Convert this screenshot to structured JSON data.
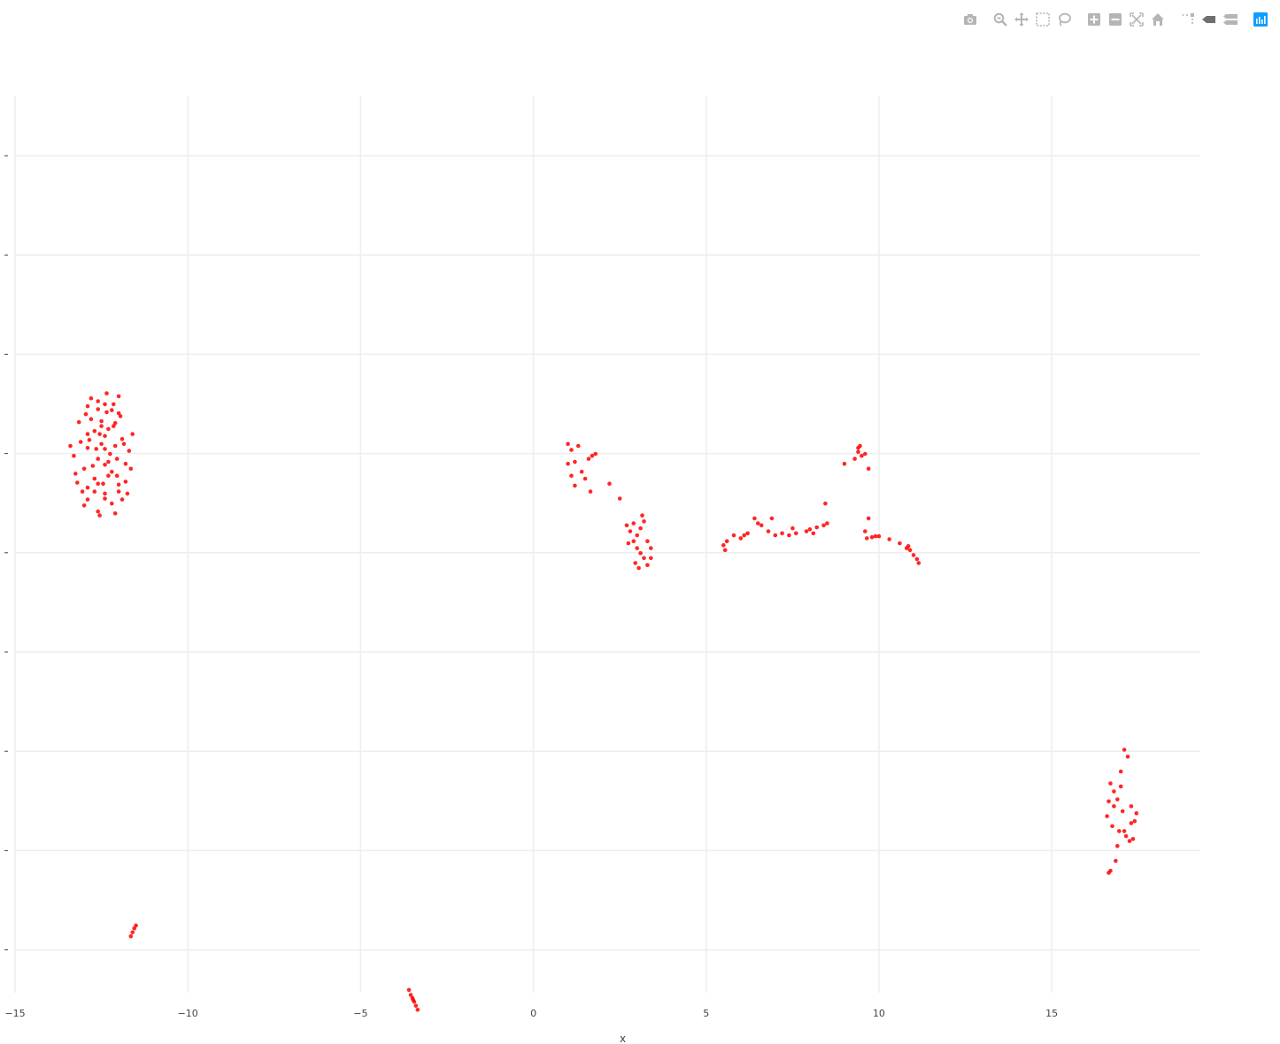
{
  "toolbar": {
    "buttons": [
      {
        "name": "camera-icon",
        "title": "Download plot as a png"
      },
      {
        "name": "zoom-icon",
        "title": "Zoom"
      },
      {
        "name": "pan-icon",
        "title": "Pan"
      },
      {
        "name": "box-select-icon",
        "title": "Box Select"
      },
      {
        "name": "lasso-select-icon",
        "title": "Lasso Select"
      },
      {
        "name": "zoom-in-icon",
        "title": "Zoom in"
      },
      {
        "name": "zoom-out-icon",
        "title": "Zoom out"
      },
      {
        "name": "autoscale-icon",
        "title": "Autoscale"
      },
      {
        "name": "reset-axes-icon",
        "title": "Reset axes"
      },
      {
        "name": "spike-lines-icon",
        "title": "Toggle Spike Lines"
      },
      {
        "name": "hover-closest-icon",
        "title": "Show closest data on hover"
      },
      {
        "name": "hover-compare-icon",
        "title": "Compare data on hover"
      },
      {
        "name": "plotly-logo-icon",
        "title": "Produced with Plotly"
      }
    ]
  },
  "chart_data": {
    "type": "scatter",
    "title": "",
    "xlabel": "x",
    "ylabel": "",
    "xlim": [
      -15,
      19.3
    ],
    "x_ticks": [
      -15,
      -10,
      -5,
      0,
      5,
      10,
      15
    ],
    "x_tick_labels": [
      "−15",
      "−10",
      "−5",
      "0",
      "5",
      "10",
      "15"
    ],
    "y_gridlines": 9,
    "grid": true,
    "legend": "none",
    "marker_color": "#ff0000",
    "series": [
      {
        "points": [
          [
            -12.8,
            0.56
          ],
          [
            -12.6,
            0.53
          ],
          [
            -12.4,
            0.5
          ],
          [
            -12.2,
            0.44
          ],
          [
            -12.0,
            0.41
          ],
          [
            -12.9,
            0.2
          ],
          [
            -12.7,
            0.23
          ],
          [
            -12.5,
            0.28
          ],
          [
            -12.3,
            0.25
          ],
          [
            -12.1,
            0.31
          ],
          [
            -13.1,
            0.12
          ],
          [
            -12.9,
            0.06
          ],
          [
            -12.6,
            -0.05
          ],
          [
            -12.4,
            -0.11
          ],
          [
            -12.1,
            0.08
          ],
          [
            -11.9,
            0.15
          ],
          [
            -13.2,
            -0.29
          ],
          [
            -12.9,
            -0.34
          ],
          [
            -12.7,
            -0.25
          ],
          [
            -12.4,
            -0.4
          ],
          [
            -12.2,
            -0.18
          ],
          [
            -12.0,
            -0.31
          ],
          [
            -11.8,
            -0.1
          ],
          [
            -13.0,
            -0.52
          ],
          [
            -12.6,
            -0.58
          ],
          [
            -12.4,
            -0.45
          ],
          [
            -12.1,
            -0.6
          ],
          [
            -11.9,
            -0.46
          ],
          [
            -13.3,
            -0.02
          ],
          [
            -11.7,
            0.03
          ],
          [
            -12.8,
            0.35
          ],
          [
            -12.5,
            0.1
          ],
          [
            -12.3,
            -0.22
          ],
          [
            -12.6,
            0.45
          ],
          [
            -12.0,
            0.58
          ],
          [
            -12.2,
            -0.5
          ],
          [
            -13.0,
            -0.15
          ],
          [
            -11.8,
            -0.28
          ],
          [
            -12.4,
            0.18
          ],
          [
            -12.7,
            -0.38
          ],
          [
            -13.4,
            0.08
          ],
          [
            -11.6,
            0.2
          ],
          [
            -12.95,
            0.4
          ],
          [
            -12.05,
            -0.05
          ],
          [
            -12.55,
            -0.62
          ],
          [
            -12.35,
            0.61
          ],
          [
            -12.9,
            -0.46
          ],
          [
            -12.15,
            0.28
          ],
          [
            -11.75,
            -0.4
          ],
          [
            -13.15,
            0.32
          ],
          [
            -12.45,
            -0.3
          ],
          [
            -12.65,
            0.05
          ],
          [
            -12.25,
            0.0
          ],
          [
            -11.95,
            0.38
          ],
          [
            -13.05,
            -0.38
          ],
          [
            -12.85,
            0.14
          ],
          [
            -12.5,
            0.33
          ],
          [
            -12.3,
            -0.08
          ],
          [
            -12.05,
            -0.22
          ],
          [
            -11.85,
            0.1
          ],
          [
            -12.75,
            -0.12
          ],
          [
            -12.15,
            0.5
          ],
          [
            -13.25,
            -0.2
          ],
          [
            -12.55,
            0.2
          ],
          [
            -12.35,
            0.42
          ],
          [
            -12.0,
            -0.38
          ],
          [
            -11.65,
            -0.15
          ],
          [
            -12.9,
            0.48
          ],
          [
            -12.6,
            -0.3
          ],
          [
            -12.4,
            0.05
          ],
          [
            1.0,
            0.1
          ],
          [
            1.1,
            0.04
          ],
          [
            1.2,
            -0.08
          ],
          [
            1.3,
            0.08
          ],
          [
            1.1,
            -0.22
          ],
          [
            1.4,
            -0.18
          ],
          [
            1.6,
            -0.05
          ],
          [
            1.7,
            -0.02
          ],
          [
            1.5,
            -0.25
          ],
          [
            1.8,
            0.0
          ],
          [
            1.0,
            -0.1
          ],
          [
            1.2,
            -0.32
          ],
          [
            1.65,
            -0.38
          ],
          [
            2.2,
            -0.3
          ],
          [
            2.5,
            -0.45
          ],
          [
            2.7,
            -0.72
          ],
          [
            2.8,
            -0.78
          ],
          [
            2.9,
            -0.7
          ],
          [
            3.0,
            -0.82
          ],
          [
            3.1,
            -0.75
          ],
          [
            3.2,
            -0.68
          ],
          [
            3.3,
            -0.88
          ],
          [
            3.4,
            -0.95
          ],
          [
            3.0,
            -0.95
          ],
          [
            2.9,
            -0.88
          ],
          [
            3.1,
            -1.0
          ],
          [
            3.2,
            -1.05
          ],
          [
            3.4,
            -1.05
          ],
          [
            2.75,
            -0.9
          ],
          [
            3.05,
            -1.15
          ],
          [
            3.15,
            -0.62
          ],
          [
            2.95,
            -1.1
          ],
          [
            3.3,
            -1.12
          ],
          [
            5.5,
            -0.92
          ],
          [
            5.6,
            -0.88
          ],
          [
            5.8,
            -0.82
          ],
          [
            6.0,
            -0.85
          ],
          [
            6.2,
            -0.8
          ],
          [
            6.4,
            -0.65
          ],
          [
            6.6,
            -0.72
          ],
          [
            6.8,
            -0.78
          ],
          [
            7.0,
            -0.82
          ],
          [
            7.2,
            -0.8
          ],
          [
            7.5,
            -0.75
          ],
          [
            7.6,
            -0.8
          ],
          [
            8.0,
            -0.76
          ],
          [
            8.2,
            -0.74
          ],
          [
            8.4,
            -0.72
          ],
          [
            8.5,
            -0.7
          ],
          [
            8.45,
            -0.5
          ],
          [
            5.55,
            -0.97
          ],
          [
            6.1,
            -0.82
          ],
          [
            6.5,
            -0.7
          ],
          [
            6.9,
            -0.65
          ],
          [
            7.4,
            -0.82
          ],
          [
            7.9,
            -0.78
          ],
          [
            8.1,
            -0.8
          ],
          [
            9.0,
            -0.1
          ],
          [
            9.3,
            -0.05
          ],
          [
            9.4,
            0.02
          ],
          [
            9.45,
            0.08
          ],
          [
            9.5,
            -0.02
          ],
          [
            9.6,
            0.0
          ],
          [
            9.4,
            0.06
          ],
          [
            9.7,
            -0.15
          ],
          [
            9.7,
            -0.65
          ],
          [
            9.6,
            -0.78
          ],
          [
            9.8,
            -0.84
          ],
          [
            10.0,
            -0.83
          ],
          [
            10.3,
            -0.86
          ],
          [
            10.6,
            -0.9
          ],
          [
            10.8,
            -0.95
          ],
          [
            10.9,
            -0.97
          ],
          [
            11.0,
            -1.02
          ],
          [
            11.1,
            -1.06
          ],
          [
            11.15,
            -1.1
          ],
          [
            9.65,
            -0.85
          ],
          [
            9.9,
            -0.83
          ],
          [
            10.85,
            -0.93
          ],
          [
            16.7,
            -3.32
          ],
          [
            16.8,
            -3.4
          ],
          [
            16.9,
            -3.48
          ],
          [
            17.0,
            -3.2
          ],
          [
            17.1,
            -2.98
          ],
          [
            17.2,
            -3.05
          ],
          [
            17.3,
            -3.55
          ],
          [
            17.4,
            -3.7
          ],
          [
            16.6,
            -3.65
          ],
          [
            16.75,
            -3.75
          ],
          [
            16.95,
            -3.8
          ],
          [
            17.05,
            -3.6
          ],
          [
            17.15,
            -3.85
          ],
          [
            17.25,
            -3.9
          ],
          [
            17.35,
            -3.88
          ],
          [
            17.45,
            -3.62
          ],
          [
            16.85,
            -4.1
          ],
          [
            16.7,
            -4.2
          ],
          [
            16.65,
            -4.22
          ],
          [
            16.9,
            -3.95
          ],
          [
            17.1,
            -3.8
          ],
          [
            17.3,
            -3.72
          ],
          [
            17.0,
            -3.35
          ],
          [
            16.8,
            -3.55
          ],
          [
            16.65,
            -3.5
          ],
          [
            -11.6,
            -4.82
          ],
          [
            -11.55,
            -4.78
          ],
          [
            -11.5,
            -4.75
          ],
          [
            -11.65,
            -4.86
          ],
          [
            -3.6,
            -5.4
          ],
          [
            -3.55,
            -5.45
          ],
          [
            -3.5,
            -5.48
          ],
          [
            -3.45,
            -5.52
          ],
          [
            -3.4,
            -5.56
          ],
          [
            -3.35,
            -5.6
          ],
          [
            -3.48,
            -5.5
          ]
        ]
      }
    ]
  }
}
